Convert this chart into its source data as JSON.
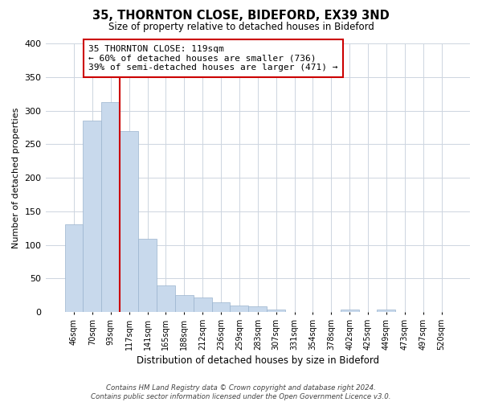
{
  "title": "35, THORNTON CLOSE, BIDEFORD, EX39 3ND",
  "subtitle": "Size of property relative to detached houses in Bideford",
  "xlabel": "Distribution of detached houses by size in Bideford",
  "ylabel": "Number of detached properties",
  "bin_labels": [
    "46sqm",
    "70sqm",
    "93sqm",
    "117sqm",
    "141sqm",
    "165sqm",
    "188sqm",
    "212sqm",
    "236sqm",
    "259sqm",
    "283sqm",
    "307sqm",
    "331sqm",
    "354sqm",
    "378sqm",
    "402sqm",
    "425sqm",
    "449sqm",
    "473sqm",
    "497sqm",
    "520sqm"
  ],
  "bar_values": [
    130,
    285,
    313,
    270,
    109,
    40,
    25,
    22,
    14,
    10,
    8,
    4,
    0,
    0,
    0,
    4,
    0,
    4,
    0,
    0,
    0
  ],
  "bar_color": "#c8d9ec",
  "bar_edge_color": "#9ab4ce",
  "vline_x": 2.5,
  "vline_color": "#cc0000",
  "annotation_line1": "35 THORNTON CLOSE: 119sqm",
  "annotation_line2": "← 60% of detached houses are smaller (736)",
  "annotation_line3": "39% of semi-detached houses are larger (471) →",
  "annotation_box_color": "#ffffff",
  "annotation_box_edge": "#cc0000",
  "ylim": [
    0,
    400
  ],
  "yticks": [
    0,
    50,
    100,
    150,
    200,
    250,
    300,
    350,
    400
  ],
  "footer_text": "Contains HM Land Registry data © Crown copyright and database right 2024.\nContains public sector information licensed under the Open Government Licence v3.0.",
  "background_color": "#ffffff",
  "grid_color": "#cdd5e0"
}
